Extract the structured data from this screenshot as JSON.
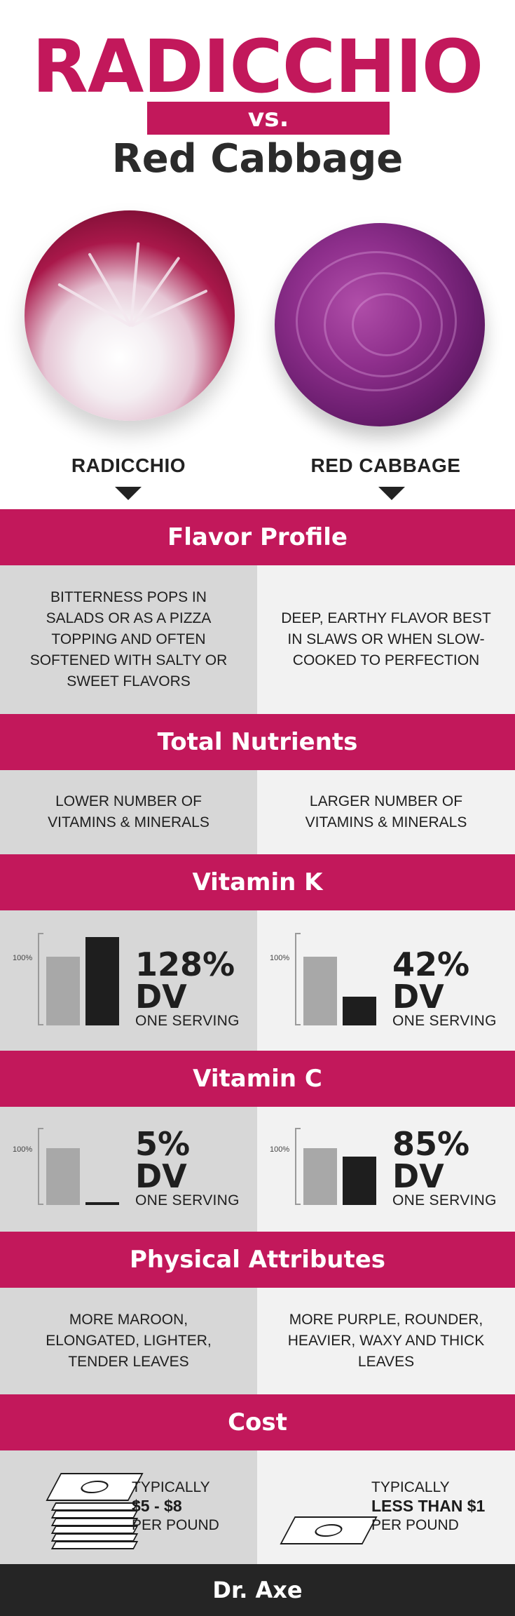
{
  "header": {
    "title": "RADICCHIO",
    "vs": "vs.",
    "subtitle": "Red Cabbage"
  },
  "labels": {
    "left": "RADICCHIO",
    "right": "RED CABBAGE"
  },
  "colors": {
    "accent": "#c2185b",
    "left_bg": "#d7d7d7",
    "right_bg": "#f2f2f2",
    "footer_bg": "#252525"
  },
  "flavor": {
    "title": "Flavor Profile",
    "left": "Bitterness pops in salads or as a pizza topping and often softened with salty or sweet flavors",
    "right": "Deep, earthy flavor best in slaws or when slow-cooked to perfection"
  },
  "nutrients": {
    "title": "Total Nutrients",
    "left": "Lower number of vitamins & minerals",
    "right": "Larger number of vitamins & minerals"
  },
  "vitamin_k": {
    "title": "Vitamin K",
    "reference_label": "100%",
    "left": {
      "pct": "128%",
      "dv": "DV",
      "serving": "ONE SERVING",
      "value": 128
    },
    "right": {
      "pct": "42%",
      "dv": "DV",
      "serving": "ONE SERVING",
      "value": 42
    }
  },
  "vitamin_c": {
    "title": "Vitamin C",
    "reference_label": "100%",
    "left": {
      "pct": "5%",
      "dv": "DV",
      "serving": "ONE SERVING",
      "value": 5
    },
    "right": {
      "pct": "85%",
      "dv": "DV",
      "serving": "ONE SERVING",
      "value": 85
    }
  },
  "physical": {
    "title": "Physical Attributes",
    "left": "More maroon, elongated, lighter, tender leaves",
    "right": "More purple, rounder, heavier, waxy and thick leaves"
  },
  "cost": {
    "title": "Cost",
    "left": {
      "line1": "TYPICALLY",
      "line2": "$5 - $8",
      "line3": "PER POUND",
      "icon": "money-stack-icon"
    },
    "right": {
      "line1": "TYPICALLY",
      "line2": "LESS THAN $1",
      "line3": "PER POUND",
      "icon": "single-bill-icon"
    }
  },
  "footer": {
    "brand": "Dr. Axe"
  }
}
